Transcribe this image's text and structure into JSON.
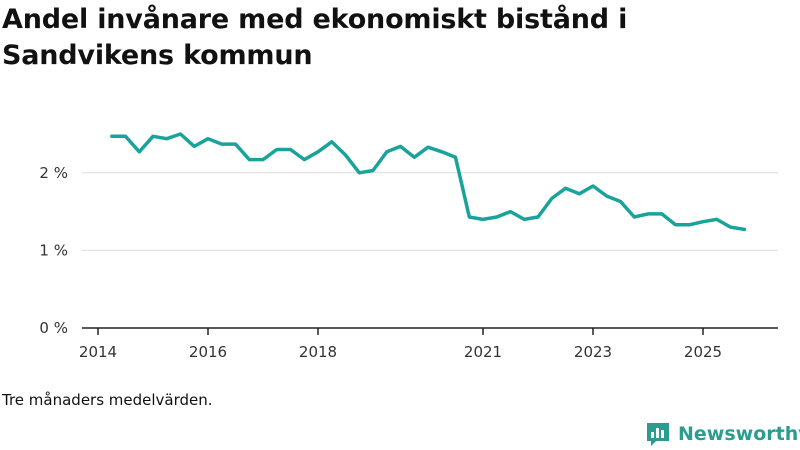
{
  "title": "Andel invånare med ekonomiskt bistånd i Sandvikens kommun",
  "note": "Tre månaders medelvärden.",
  "brand": {
    "name": "Newsworthy",
    "logo_icon": "bar-chart-icon"
  },
  "colors": {
    "line": "#1aa39a",
    "grid": "#dddddd",
    "axis": "#222222",
    "text": "#111111",
    "brand": "#2a9d8f"
  },
  "chart_data": {
    "type": "line",
    "title": "Andel invånare med ekonomiskt bistånd i Sandvikens kommun",
    "xlabel": "",
    "ylabel": "",
    "ylim": [
      0,
      3
    ],
    "xlim": [
      2014.0,
      2026.3
    ],
    "yticks": [
      0,
      1,
      2
    ],
    "ytick_labels": [
      "0 %",
      "1 %",
      "2 %"
    ],
    "xticks": [
      2014,
      2016,
      2018,
      2021,
      2023,
      2025
    ],
    "xtick_labels": [
      "2014",
      "2016",
      "2018",
      "2021",
      "2023",
      "2025"
    ],
    "grid": true,
    "series": [
      {
        "name": "Andel invånare med ekonomiskt bistånd",
        "x": [
          2014.25,
          2014.5,
          2014.75,
          2015.0,
          2015.25,
          2015.5,
          2015.75,
          2016.0,
          2016.25,
          2016.5,
          2016.75,
          2017.0,
          2017.25,
          2017.5,
          2017.75,
          2018.0,
          2018.25,
          2018.5,
          2018.75,
          2019.0,
          2019.25,
          2019.5,
          2019.75,
          2020.0,
          2020.25,
          2020.5,
          2020.75,
          2021.0,
          2021.25,
          2021.5,
          2021.75,
          2022.0,
          2022.25,
          2022.5,
          2022.75,
          2023.0,
          2023.25,
          2023.5,
          2023.75,
          2024.0,
          2024.25,
          2024.5,
          2024.75,
          2025.0,
          2025.25,
          2025.5,
          2025.75
        ],
        "values": [
          2.47,
          2.47,
          2.27,
          2.47,
          2.44,
          2.5,
          2.34,
          2.44,
          2.37,
          2.37,
          2.17,
          2.17,
          2.3,
          2.3,
          2.17,
          2.27,
          2.4,
          2.23,
          2.0,
          2.03,
          2.27,
          2.34,
          2.2,
          2.33,
          2.27,
          2.2,
          1.43,
          1.4,
          1.43,
          1.5,
          1.4,
          1.43,
          1.67,
          1.8,
          1.73,
          1.83,
          1.7,
          1.63,
          1.43,
          1.47,
          1.47,
          1.33,
          1.33,
          1.37,
          1.4,
          1.3,
          1.27
        ]
      }
    ]
  }
}
